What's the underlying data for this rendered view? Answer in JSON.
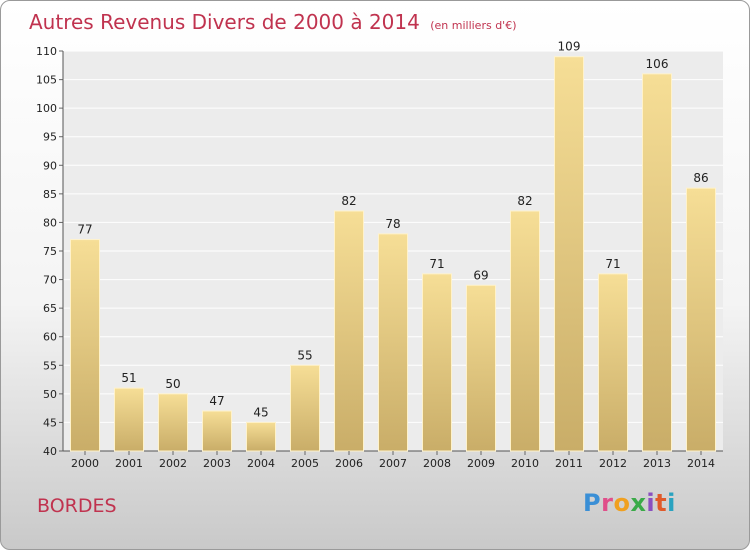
{
  "chart_data": {
    "type": "bar",
    "title": "Autres Revenus Divers de 2000 à 2014",
    "subtitle": "(en milliers d'€)",
    "categories": [
      "2000",
      "2001",
      "2002",
      "2003",
      "2004",
      "2005",
      "2006",
      "2007",
      "2008",
      "2009",
      "2010",
      "2011",
      "2012",
      "2013",
      "2014"
    ],
    "values": [
      77,
      51,
      50,
      47,
      45,
      55,
      82,
      78,
      71,
      69,
      82,
      109,
      71,
      106,
      86
    ],
    "ylim": [
      40,
      110
    ],
    "yticks": [
      40,
      45,
      50,
      55,
      60,
      65,
      70,
      75,
      80,
      85,
      90,
      95,
      100,
      105,
      110
    ],
    "grid": true,
    "bar_color": "#e8cc80"
  },
  "footer": {
    "location": "BORDES",
    "logo_text": "Proxiti"
  }
}
